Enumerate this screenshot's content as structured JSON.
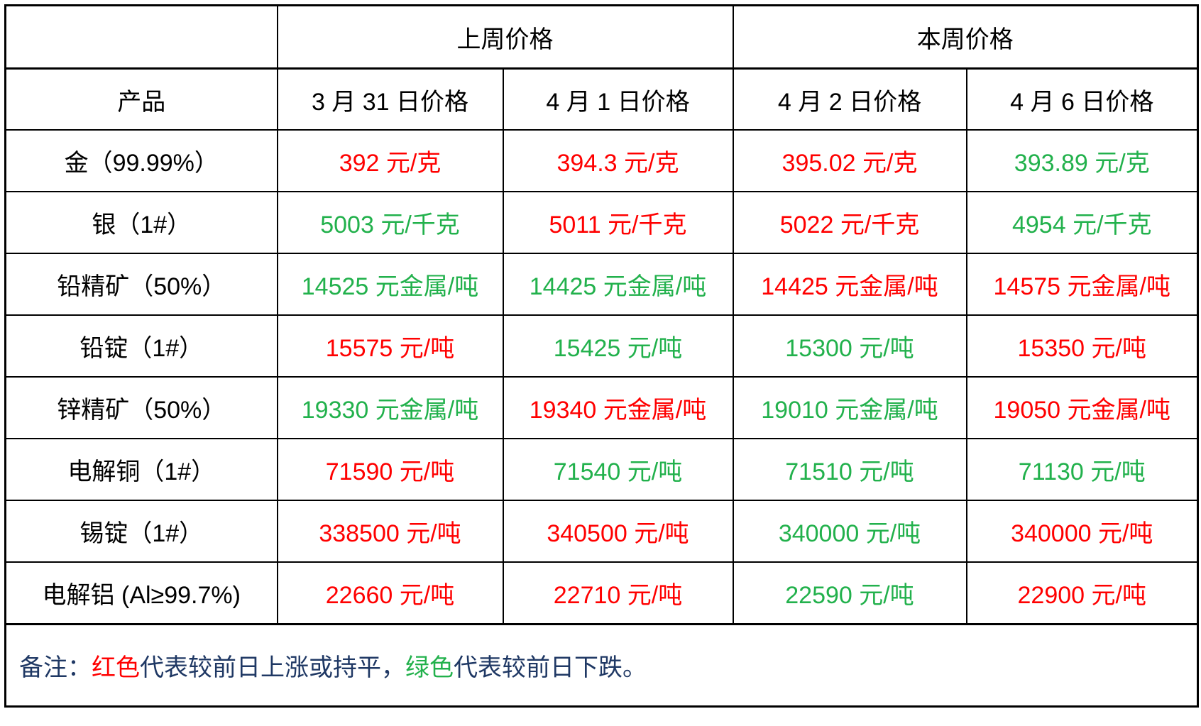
{
  "table": {
    "header_groups": [
      {
        "label": ""
      },
      {
        "label": "上周价格"
      },
      {
        "label": "本周价格"
      }
    ],
    "columns": [
      "产品",
      "3 月 31 日价格",
      "4 月 1 日价格",
      "4 月 2 日价格",
      "4 月 6 日价格"
    ],
    "rows": [
      {
        "product": "金（99.99%）",
        "values": [
          {
            "text": "392 元/克",
            "trend": "up"
          },
          {
            "text": "394.3 元/克",
            "trend": "up"
          },
          {
            "text": "395.02 元/克",
            "trend": "up"
          },
          {
            "text": "393.89 元/克",
            "trend": "down"
          }
        ]
      },
      {
        "product": "银（1#）",
        "values": [
          {
            "text": "5003 元/千克",
            "trend": "down"
          },
          {
            "text": "5011 元/千克",
            "trend": "up"
          },
          {
            "text": "5022 元/千克",
            "trend": "up"
          },
          {
            "text": "4954 元/千克",
            "trend": "down"
          }
        ]
      },
      {
        "product": "铅精矿（50%）",
        "values": [
          {
            "text": "14525 元金属/吨",
            "trend": "down"
          },
          {
            "text": "14425 元金属/吨",
            "trend": "down"
          },
          {
            "text": "14425 元金属/吨",
            "trend": "up"
          },
          {
            "text": "14575 元金属/吨",
            "trend": "up"
          }
        ]
      },
      {
        "product": "铅锭（1#）",
        "values": [
          {
            "text": "15575 元/吨",
            "trend": "up"
          },
          {
            "text": "15425 元/吨",
            "trend": "down"
          },
          {
            "text": "15300 元/吨",
            "trend": "down"
          },
          {
            "text": "15350 元/吨",
            "trend": "up"
          }
        ]
      },
      {
        "product": "锌精矿（50%）",
        "values": [
          {
            "text": "19330 元金属/吨",
            "trend": "down"
          },
          {
            "text": "19340 元金属/吨",
            "trend": "up"
          },
          {
            "text": "19010 元金属/吨",
            "trend": "down"
          },
          {
            "text": "19050 元金属/吨",
            "trend": "up"
          }
        ]
      },
      {
        "product": "电解铜（1#）",
        "values": [
          {
            "text": "71590 元/吨",
            "trend": "up"
          },
          {
            "text": "71540 元/吨",
            "trend": "down"
          },
          {
            "text": "71510 元/吨",
            "trend": "down"
          },
          {
            "text": "71130 元/吨",
            "trend": "down"
          }
        ]
      },
      {
        "product": "锡锭（1#）",
        "values": [
          {
            "text": "338500 元/吨",
            "trend": "up"
          },
          {
            "text": "340500 元/吨",
            "trend": "up"
          },
          {
            "text": "340000 元/吨",
            "trend": "down"
          },
          {
            "text": "340000 元/吨",
            "trend": "up"
          }
        ]
      },
      {
        "product": "电解铝 (Al≥99.7%)",
        "values": [
          {
            "text": "22660 元/吨",
            "trend": "up"
          },
          {
            "text": "22710 元/吨",
            "trend": "up"
          },
          {
            "text": "22590 元/吨",
            "trend": "down"
          },
          {
            "text": "22900 元/吨",
            "trend": "up"
          }
        ]
      }
    ],
    "note": {
      "prefix": "备注：",
      "up_label": "红色",
      "up_desc": "代表较前日上涨或持平，",
      "down_label": "绿色",
      "down_desc": "代表较前日下跌。"
    }
  },
  "colors": {
    "rise": "#ff0000",
    "fall": "#22b14c",
    "note_text": "#1f3864",
    "border": "#000000"
  }
}
